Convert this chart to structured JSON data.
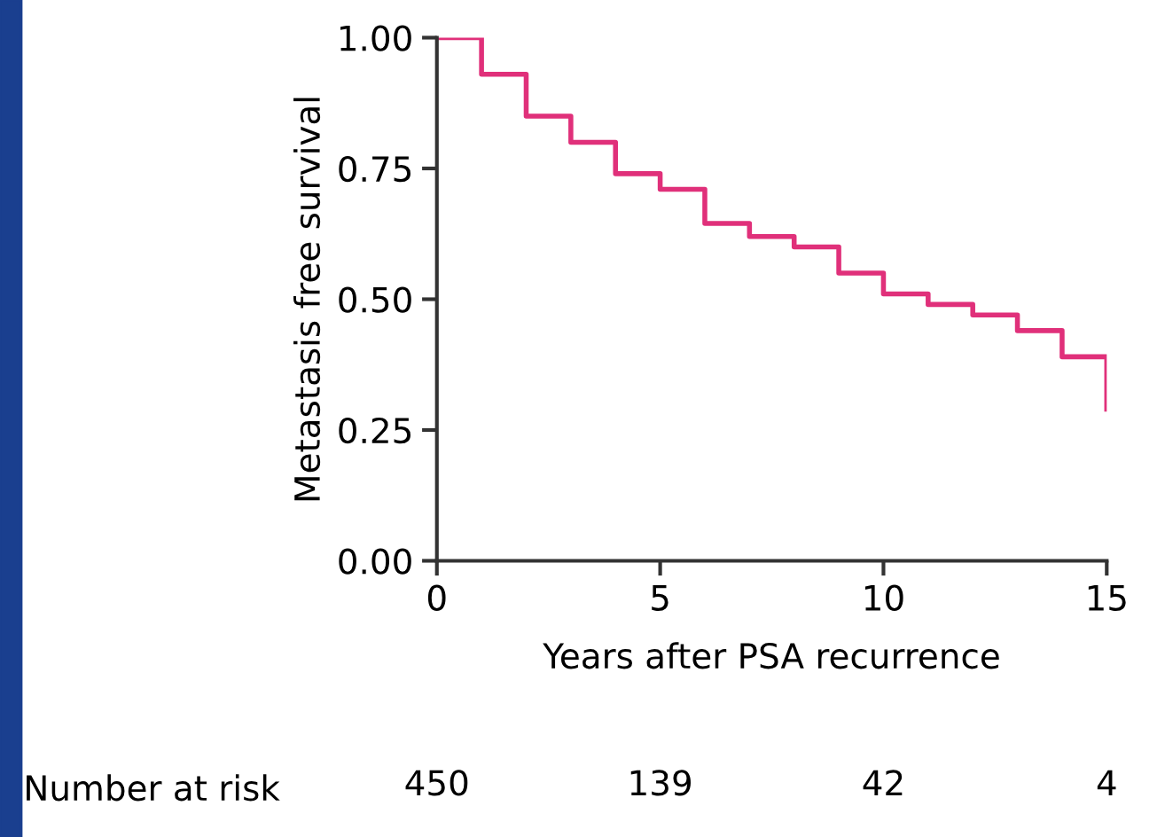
{
  "chart_data": {
    "type": "step",
    "xlabel": "Years after PSA recurrence",
    "ylabel": "Metastasis free survival",
    "x": [
      0,
      1,
      2,
      3,
      4,
      5,
      6,
      7,
      8,
      9,
      10,
      11,
      12,
      13,
      14,
      15,
      15
    ],
    "series": [
      {
        "color": "#e0307a",
        "values": [
          1.0,
          0.93,
          0.85,
          0.8,
          0.74,
          0.71,
          0.645,
          0.62,
          0.6,
          0.55,
          0.51,
          0.49,
          0.47,
          0.44,
          0.39,
          0.39,
          0.29
        ]
      }
    ],
    "xlim": [
      0,
      15
    ],
    "xticks": [
      0,
      5,
      10,
      15
    ],
    "ylim": [
      0,
      1
    ],
    "yticks": [
      {
        "value": 0,
        "label": "0.00"
      },
      {
        "value": 0.25,
        "label": "0.25"
      },
      {
        "value": 0.5,
        "label": "0.50"
      },
      {
        "value": 0.75,
        "label": "0.75"
      },
      {
        "value": 1,
        "label": "1.00"
      }
    ],
    "grid": false,
    "legend": false,
    "annotations": [
      "Number at risk",
      "450",
      "139",
      "42",
      "4"
    ]
  }
}
